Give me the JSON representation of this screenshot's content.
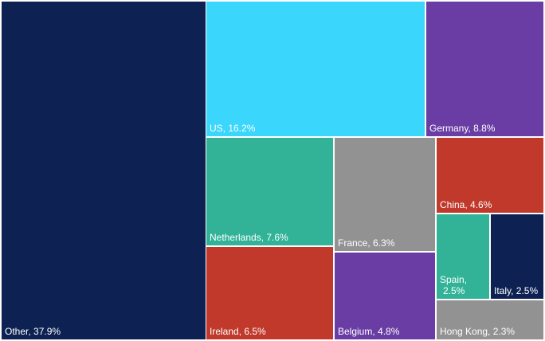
{
  "chart_data": {
    "type": "treemap",
    "title": "",
    "series": [
      {
        "name": "Other",
        "value": 37.9,
        "label": "Other, 37.9%",
        "color": "#0d2252"
      },
      {
        "name": "US",
        "value": 16.2,
        "label": "US, 16.2%",
        "color": "#3ad6fc"
      },
      {
        "name": "Germany",
        "value": 8.8,
        "label": "Germany, 8.8%",
        "color": "#6a3da4"
      },
      {
        "name": "Netherlands",
        "value": 7.6,
        "label": "Netherlands, 7.6%",
        "color": "#32b398"
      },
      {
        "name": "Ireland",
        "value": 6.5,
        "label": "Ireland, 6.5%",
        "color": "#c0392b"
      },
      {
        "name": "France",
        "value": 6.3,
        "label": "France, 6.3%",
        "color": "#929292"
      },
      {
        "name": "Belgium",
        "value": 4.8,
        "label": "Belgium, 4.8%",
        "color": "#6a3da4"
      },
      {
        "name": "China",
        "value": 4.6,
        "label": "China, 4.6%",
        "color": "#c0392b"
      },
      {
        "name": "Spain",
        "value": 2.5,
        "label": "Spain,\n2.5%",
        "color": "#32b398"
      },
      {
        "name": "Italy",
        "value": 2.5,
        "label": "Italy, 2.5%",
        "color": "#0d2252"
      },
      {
        "name": "Hong Kong",
        "value": 2.3,
        "label": "Hong Kong, 2.3%",
        "color": "#929292"
      }
    ]
  }
}
